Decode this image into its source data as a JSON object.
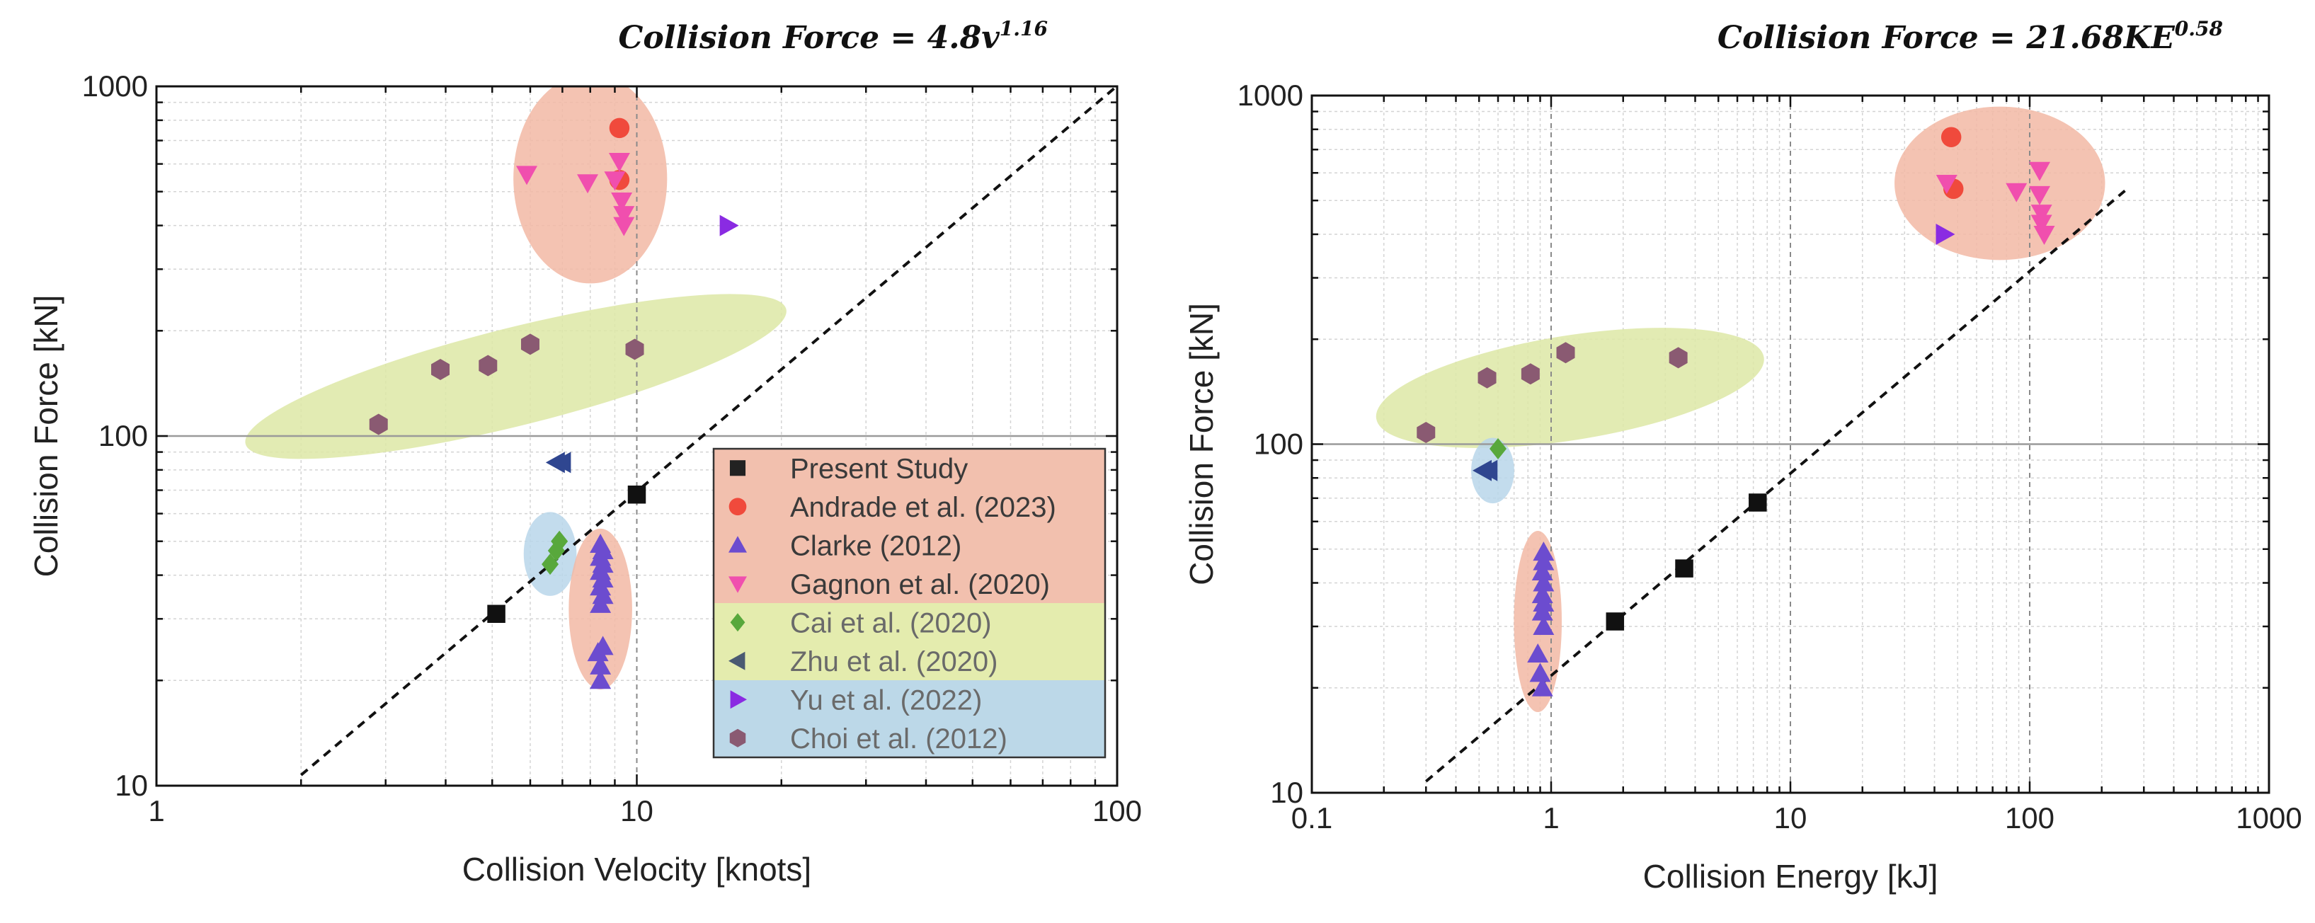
{
  "chart_data": [
    {
      "type": "scatter",
      "title_prefix": "Collision Force = ",
      "title_math": "4.8v",
      "title_exponent": "1.16",
      "xlabel": "Collision Velocity [knots]",
      "ylabel": "Collision Force [kN]",
      "xscale": "log",
      "yscale": "log",
      "xlim": [
        1,
        100
      ],
      "ylim": [
        10,
        1000
      ],
      "xticks": [
        {
          "v": 1,
          "label": "1"
        },
        {
          "v": 10,
          "label": "10"
        },
        {
          "v": 100,
          "label": "100"
        }
      ],
      "yticks": [
        {
          "v": 10,
          "label": "10"
        },
        {
          "v": 100,
          "label": "100"
        },
        {
          "v": 1000,
          "label": "1000"
        }
      ],
      "fit_line": {
        "coef": 4.8,
        "exp": 1.16,
        "x_from": 2.0,
        "x_to": 100
      },
      "ref_lines": {
        "x": [
          10
        ],
        "y": [
          100
        ]
      },
      "regions": [
        {
          "cx": 8.0,
          "cy": 545,
          "rx_dec": 0.16,
          "ry_dec": 0.3,
          "angle": 0,
          "color": "#f2b8a4"
        },
        {
          "cx": 5.6,
          "cy": 148,
          "rx_dec": 0.58,
          "ry_dec": 0.14,
          "angle": -14,
          "color": "#dde8a6"
        },
        {
          "cx": 6.6,
          "cy": 46,
          "rx_dec": 0.055,
          "ry_dec": 0.12,
          "angle": 0,
          "color": "#b8d6ea"
        },
        {
          "cx": 8.4,
          "cy": 32,
          "rx_dec": 0.066,
          "ry_dec": 0.23,
          "angle": 0,
          "color": "#f2b8a4"
        }
      ],
      "legend": {
        "entries": [
          {
            "label": "Present Study",
            "marker": "square",
            "color": "#222222",
            "band": 0
          },
          {
            "label": "Andrade et al. (2023)",
            "marker": "circle",
            "color": "#f04a3c",
            "band": 0
          },
          {
            "label": "Clarke (2012)",
            "marker": "tri-up",
            "color": "#6c4ccf",
            "band": 0
          },
          {
            "label": "Gagnon et al. (2020)",
            "marker": "tri-down",
            "color": "#f04fae",
            "band": 0
          },
          {
            "label": "Cai et al. (2020)",
            "marker": "diamond",
            "color": "#58a83c",
            "band": 1
          },
          {
            "label": "Zhu et al. (2020)",
            "marker": "tri-left",
            "color": "#4a5a72",
            "band": 1
          },
          {
            "label": "Yu et al. (2022)",
            "marker": "tri-right",
            "color": "#8a2be2",
            "band": 2
          },
          {
            "label": "Choi et al. (2012)",
            "marker": "hexagon",
            "color": "#8a5a72",
            "band": 2
          }
        ],
        "band_colors": [
          "#f2c0ae",
          "#e4ecae",
          "#bcd8e8"
        ]
      },
      "series": [
        {
          "name": "Present Study",
          "marker": "square",
          "color": "#111111",
          "points": [
            [
              5.1,
              31
            ],
            [
              10,
              68
            ]
          ]
        },
        {
          "name": "Andrade et al. (2023)",
          "marker": "circle",
          "color": "#f04a3c",
          "points": [
            [
              9.2,
              760
            ],
            [
              9.2,
              540
            ]
          ]
        },
        {
          "name": "Clarke (2012)",
          "marker": "tri-up",
          "color": "#6c4ccf",
          "points": [
            [
              8.4,
              20
            ],
            [
              8.4,
              22
            ],
            [
              8.3,
              24
            ],
            [
              8.5,
              25
            ],
            [
              8.4,
              33
            ],
            [
              8.5,
              35
            ],
            [
              8.4,
              37
            ],
            [
              8.5,
              39
            ],
            [
              8.4,
              41
            ],
            [
              8.5,
              43
            ],
            [
              8.4,
              45
            ],
            [
              8.5,
              47
            ],
            [
              8.4,
              49
            ]
          ]
        },
        {
          "name": "Gagnon et al. (2020)",
          "marker": "tri-down",
          "color": "#f04fae",
          "points": [
            [
              5.9,
              560
            ],
            [
              7.9,
              530
            ],
            [
              9.0,
              540
            ],
            [
              9.2,
              610
            ],
            [
              9.3,
              470
            ],
            [
              9.4,
              430
            ],
            [
              9.4,
              400
            ]
          ]
        },
        {
          "name": "Cai et al. (2020)",
          "marker": "diamond",
          "color": "#58a83c",
          "points": [
            [
              6.6,
              43
            ],
            [
              6.8,
              47
            ],
            [
              6.9,
              50
            ]
          ]
        },
        {
          "name": "Zhu et al. (2020)",
          "marker": "tri-left",
          "color": "#2f4690",
          "points": [
            [
              6.8,
              84
            ],
            [
              7.0,
              84
            ]
          ]
        },
        {
          "name": "Yu et al. (2022)",
          "marker": "tri-right",
          "color": "#8a2be2",
          "points": [
            [
              15.5,
              400
            ]
          ]
        },
        {
          "name": "Choi et al. (2012)",
          "marker": "hexagon",
          "color": "#8a5a72",
          "points": [
            [
              2.9,
              108
            ],
            [
              3.9,
              155
            ],
            [
              4.9,
              159
            ],
            [
              6.0,
              183
            ],
            [
              9.9,
              177
            ]
          ]
        }
      ]
    },
    {
      "type": "scatter",
      "title_prefix": "Collision Force = ",
      "title_math": "21.68KE",
      "title_exponent": "0.58",
      "xlabel": "Collision Energy [kJ]",
      "ylabel": "Collision Force [kN]",
      "xscale": "log",
      "yscale": "log",
      "xlim": [
        0.1,
        1000
      ],
      "ylim": [
        10,
        1000
      ],
      "xticks": [
        {
          "v": 0.1,
          "label": "0.1"
        },
        {
          "v": 1,
          "label": "1"
        },
        {
          "v": 10,
          "label": "10"
        },
        {
          "v": 100,
          "label": "100"
        },
        {
          "v": 1000,
          "label": "1000"
        }
      ],
      "yticks": [
        {
          "v": 10,
          "label": "10"
        },
        {
          "v": 100,
          "label": "100"
        },
        {
          "v": 1000,
          "label": "1000"
        }
      ],
      "fit_line": {
        "coef": 21.68,
        "exp": 0.58,
        "x_from": 0.3,
        "x_to": 250
      },
      "ref_lines": {
        "x": [
          1,
          10,
          100
        ],
        "y": [
          100
        ]
      },
      "regions": [
        {
          "cx": 75,
          "cy": 560,
          "rx_dec": 0.44,
          "ry_dec": 0.22,
          "angle": 0,
          "color": "#f2b8a4"
        },
        {
          "cx": 1.2,
          "cy": 145,
          "rx_dec": 0.82,
          "ry_dec": 0.15,
          "angle": -9,
          "color": "#dde8a6"
        },
        {
          "cx": 0.57,
          "cy": 84,
          "rx_dec": 0.09,
          "ry_dec": 0.094,
          "angle": 0,
          "color": "#b8d6ea"
        },
        {
          "cx": 0.88,
          "cy": 31,
          "rx_dec": 0.1,
          "ry_dec": 0.26,
          "angle": 0,
          "color": "#f2b8a4"
        }
      ],
      "series": [
        {
          "name": "Present Study",
          "marker": "square",
          "color": "#111111",
          "points": [
            [
              1.85,
              31
            ],
            [
              3.6,
              44
            ],
            [
              7.3,
              68
            ]
          ]
        },
        {
          "name": "Andrade et al. (2023)",
          "marker": "circle",
          "color": "#f04a3c",
          "points": [
            [
              47,
              760
            ],
            [
              48,
              540
            ]
          ]
        },
        {
          "name": "Clarke (2012)",
          "marker": "tri-up",
          "color": "#6c4ccf",
          "points": [
            [
              0.92,
              20
            ],
            [
              0.9,
              22
            ],
            [
              0.88,
              25
            ],
            [
              0.93,
              30
            ],
            [
              0.92,
              33
            ],
            [
              0.93,
              35
            ],
            [
              0.92,
              37
            ],
            [
              0.93,
              40
            ],
            [
              0.92,
              43
            ],
            [
              0.93,
              46
            ],
            [
              0.93,
              49
            ]
          ]
        },
        {
          "name": "Gagnon et al. (2020)",
          "marker": "tri-down",
          "color": "#f04fae",
          "points": [
            [
              45,
              560
            ],
            [
              88,
              530
            ],
            [
              110,
              610
            ],
            [
              110,
              520
            ],
            [
              112,
              460
            ],
            [
              112,
              430
            ],
            [
              115,
              400
            ]
          ]
        },
        {
          "name": "Cai et al. (2020)",
          "marker": "diamond",
          "color": "#58a83c",
          "points": [
            [
              0.6,
              97
            ]
          ]
        },
        {
          "name": "Zhu et al. (2020)",
          "marker": "tri-left",
          "color": "#2f4690",
          "points": [
            [
              0.52,
              84
            ],
            [
              0.55,
              84
            ]
          ]
        },
        {
          "name": "Yu et al. (2022)",
          "marker": "tri-right",
          "color": "#8a2be2",
          "points": [
            [
              44,
              400
            ]
          ]
        },
        {
          "name": "Choi et al. (2012)",
          "marker": "hexagon",
          "color": "#8a5a72",
          "points": [
            [
              0.3,
              108
            ],
            [
              0.54,
              155
            ],
            [
              0.82,
              159
            ],
            [
              1.15,
              183
            ],
            [
              3.4,
              177
            ]
          ]
        }
      ]
    }
  ]
}
